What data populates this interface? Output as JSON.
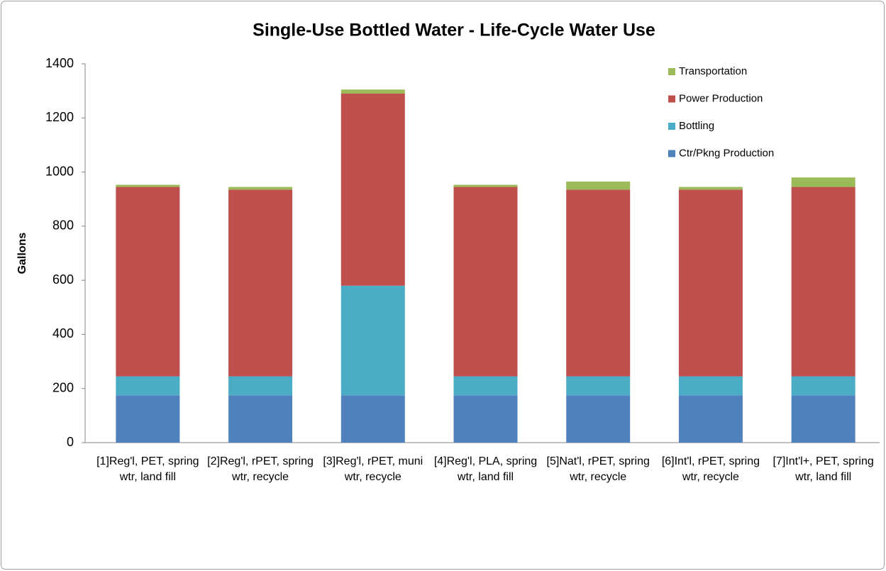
{
  "chart_data": {
    "type": "stacked-bar",
    "title": "Single-Use Bottled Water - Life-Cycle Water Use",
    "y_label": "Gallons",
    "categories": [
      "[1]Reg'l, PET, spring wtr, land fill",
      "[2]Reg'l, rPET, spring wtr, recycle",
      "[3]Reg'l, rPET, muni wtr, recycle",
      "[4]Reg'l, PLA, spring wtr, land fill",
      "[5]Nat'l, rPET, spring wtr, recycle",
      "[6]Int'l, rPET, spring wtr, recycle",
      "[7]Int'l+, PET, spring wtr, land fill"
    ],
    "series": [
      {
        "name": "Ctr/Pkng Production",
        "color": "#4f81bd",
        "values": [
          175,
          175,
          175,
          175,
          175,
          175,
          175
        ]
      },
      {
        "name": "Bottling",
        "color": "#4bacc6",
        "values": [
          70,
          70,
          405,
          70,
          70,
          70,
          70
        ]
      },
      {
        "name": "Power Production",
        "color": "#c0504d",
        "values": [
          700,
          690,
          710,
          700,
          690,
          690,
          700
        ]
      },
      {
        "name": "Transportation",
        "color": "#9bbb59",
        "values": [
          8,
          10,
          15,
          8,
          30,
          10,
          35
        ]
      }
    ],
    "ylim": [
      0,
      1400
    ],
    "yticks": [
      0,
      200,
      400,
      600,
      800,
      1000,
      1200,
      1400
    ],
    "legend": "top-right"
  }
}
